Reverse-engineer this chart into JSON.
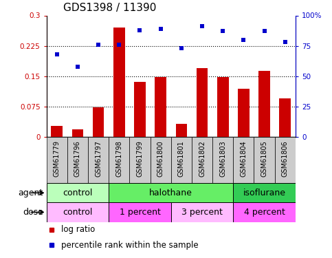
{
  "title": "GDS1398 / 11390",
  "samples": [
    "GSM61779",
    "GSM61796",
    "GSM61797",
    "GSM61798",
    "GSM61799",
    "GSM61800",
    "GSM61801",
    "GSM61802",
    "GSM61803",
    "GSM61804",
    "GSM61805",
    "GSM61806"
  ],
  "log_ratio": [
    0.027,
    0.018,
    0.072,
    0.271,
    0.135,
    0.147,
    0.032,
    0.17,
    0.147,
    0.118,
    0.163,
    0.095
  ],
  "percentile_rank": [
    68,
    58,
    76,
    76,
    88,
    89,
    73,
    91,
    87,
    80,
    87,
    78
  ],
  "bar_color": "#cc0000",
  "dot_color": "#0000cc",
  "ylim_left": [
    0,
    0.3
  ],
  "ylim_right": [
    0,
    100
  ],
  "yticks_left": [
    0,
    0.075,
    0.15,
    0.225,
    0.3
  ],
  "ytick_labels_left": [
    "0",
    "0.075",
    "0.15",
    "0.225",
    "0.3"
  ],
  "yticks_right": [
    0,
    25,
    50,
    75,
    100
  ],
  "ytick_labels_right": [
    "0",
    "25",
    "50",
    "75",
    "100%"
  ],
  "hline_values": [
    0.075,
    0.15,
    0.225
  ],
  "agent_groups": [
    {
      "label": "control",
      "start": 0,
      "end": 3,
      "color": "#bbffbb"
    },
    {
      "label": "halothane",
      "start": 3,
      "end": 9,
      "color": "#66ee66"
    },
    {
      "label": "isoflurane",
      "start": 9,
      "end": 12,
      "color": "#33cc55"
    }
  ],
  "dose_groups": [
    {
      "label": "control",
      "start": 0,
      "end": 3,
      "color": "#ffbbff"
    },
    {
      "label": "1 percent",
      "start": 3,
      "end": 6,
      "color": "#ff66ff"
    },
    {
      "label": "3 percent",
      "start": 6,
      "end": 9,
      "color": "#ffbbff"
    },
    {
      "label": "4 percent",
      "start": 9,
      "end": 12,
      "color": "#ff66ff"
    }
  ],
  "sample_cell_color": "#cccccc",
  "legend_bar_label": "log ratio",
  "legend_dot_label": "percentile rank within the sample",
  "agent_label": "agent",
  "dose_label": "dose",
  "title_fontsize": 11,
  "tick_fontsize": 7.5,
  "sample_fontsize": 7,
  "group_label_fontsize": 9,
  "legend_fontsize": 8.5
}
